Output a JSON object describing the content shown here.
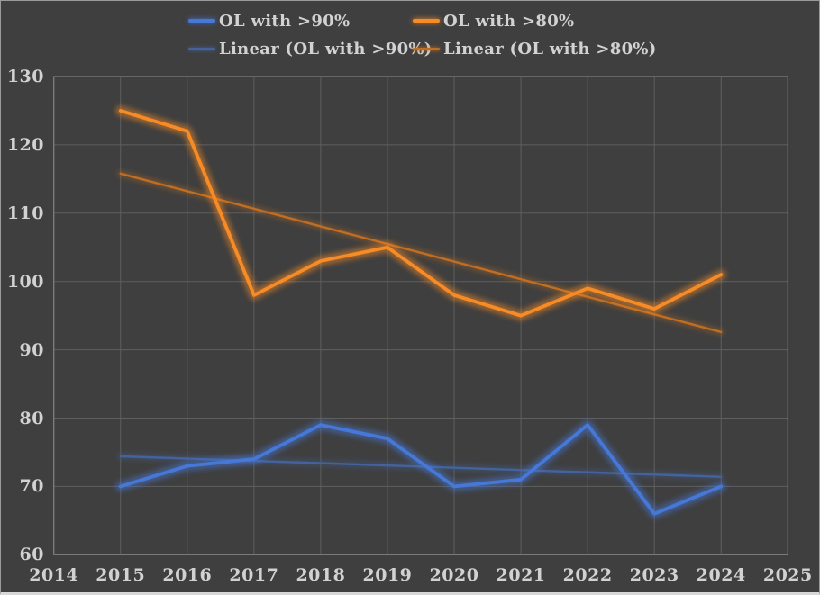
{
  "window": {
    "background": "#3F3F3F",
    "frame_border": "#9A9A9A",
    "bottom_edge": "#D8D8D8"
  },
  "colors": {
    "text": "#D2D2D2",
    "gridline": "#5F5F5F",
    "plot_border": "#808080",
    "series_blue": "#4678D8",
    "series_orange": "#F78B25",
    "trend_blue": "#44639C",
    "trend_orange": "#C06E24"
  },
  "legend": {
    "entries": [
      {
        "label": "OL with >90%",
        "color": "#4678D8",
        "style": "series"
      },
      {
        "label": "OL with >80%",
        "color": "#F78B25",
        "style": "series"
      },
      {
        "label": "Linear (OL with >90%)",
        "color": "#44639C",
        "style": "trend"
      },
      {
        "label": "Linear (OL with >80%)",
        "color": "#C06E24",
        "style": "trend"
      }
    ]
  },
  "chart_data": {
    "type": "line",
    "title": "",
    "xlabel": "",
    "ylabel": "",
    "x": [
      2015,
      2016,
      2017,
      2018,
      2019,
      2020,
      2021,
      2022,
      2023,
      2024
    ],
    "series": [
      {
        "name": "OL with >90%",
        "color": "#4678D8",
        "values": [
          70,
          73,
          74,
          79,
          77,
          70,
          71,
          79,
          66,
          70
        ]
      },
      {
        "name": "OL with >80%",
        "color": "#F78B25",
        "values": [
          125,
          122,
          98,
          103,
          105,
          98,
          95,
          99,
          96,
          101
        ]
      }
    ],
    "trendlines": [
      {
        "name": "Linear (OL with >90%)",
        "color": "#44639C",
        "x": [
          2015,
          2024
        ],
        "values": [
          74.4,
          71.4
        ]
      },
      {
        "name": "Linear (OL with >80%)",
        "color": "#C06E24",
        "x": [
          2015,
          2024
        ],
        "values": [
          115.8,
          92.6
        ]
      }
    ],
    "xlim": [
      2014,
      2025
    ],
    "ylim": [
      60,
      130
    ],
    "x_ticks": [
      2014,
      2015,
      2016,
      2017,
      2018,
      2019,
      2020,
      2021,
      2022,
      2023,
      2024,
      2025
    ],
    "y_ticks": [
      60,
      70,
      80,
      90,
      100,
      110,
      120,
      130
    ],
    "grid": true,
    "legend_position": "top-center",
    "line_effect": "glow"
  }
}
